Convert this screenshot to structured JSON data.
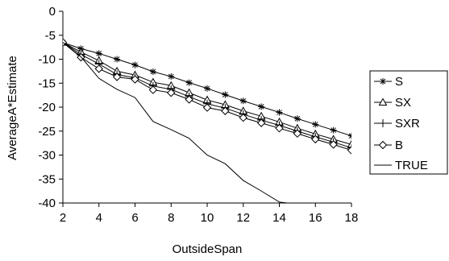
{
  "chart_data": {
    "type": "line",
    "xlabel": "OutsideSpan",
    "ylabel": "AverageA*Estimate",
    "xlim": [
      2,
      18
    ],
    "ylim": [
      -40,
      0
    ],
    "x_ticks": [
      "2",
      "4",
      "6",
      "8",
      "10",
      "12",
      "14",
      "16",
      "18"
    ],
    "y_ticks": [
      "0",
      "-5",
      "-10",
      "-15",
      "-20",
      "-25",
      "-30",
      "-35",
      "-40"
    ],
    "grid": false,
    "legend": "right",
    "series": [
      {
        "name": "S",
        "marker": "asterisk",
        "x": [
          2,
          3,
          4,
          5,
          6,
          7,
          8,
          9,
          10,
          11,
          12,
          13,
          14,
          15,
          16,
          17,
          18
        ],
        "values": [
          -6.5,
          -7.8,
          -8.8,
          -10.0,
          -11.2,
          -12.6,
          -13.6,
          -14.9,
          -16.1,
          -17.4,
          -18.7,
          -19.9,
          -21.1,
          -22.4,
          -23.6,
          -24.8,
          -26.0
        ]
      },
      {
        "name": "SX",
        "marker": "triangle",
        "x": [
          2,
          3,
          4,
          5,
          6,
          7,
          8,
          9,
          10,
          11,
          12,
          13,
          14,
          15,
          16,
          17,
          18
        ],
        "values": [
          -6.5,
          -8.5,
          -10.3,
          -12.5,
          -13.3,
          -14.8,
          -15.5,
          -17.0,
          -18.5,
          -19.5,
          -20.8,
          -21.9,
          -23.1,
          -24.4,
          -25.6,
          -26.7,
          -27.8
        ]
      },
      {
        "name": "SXR",
        "marker": "plus",
        "x": [
          2,
          3,
          4,
          5,
          6,
          7,
          8,
          9,
          10,
          11,
          12,
          13,
          14,
          15,
          16,
          17,
          18
        ],
        "values": [
          -6.5,
          -9.0,
          -11.0,
          -13.2,
          -13.9,
          -15.6,
          -16.3,
          -17.8,
          -19.3,
          -20.2,
          -21.5,
          -22.7,
          -23.8,
          -25.0,
          -26.2,
          -27.3,
          -28.5
        ]
      },
      {
        "name": "B",
        "marker": "diamond",
        "x": [
          2,
          3,
          4,
          5,
          6,
          7,
          8,
          9,
          10,
          11,
          12,
          13,
          14,
          15,
          16,
          17,
          18
        ],
        "values": [
          -6.5,
          -9.6,
          -12.0,
          -13.7,
          -14.2,
          -16.4,
          -17.0,
          -18.4,
          -20.1,
          -20.8,
          -22.2,
          -23.3,
          -24.4,
          -25.5,
          -26.7,
          -27.8,
          -29.0
        ]
      },
      {
        "name": "TRUE",
        "marker": "none",
        "x": [
          2,
          3,
          4,
          5,
          6,
          7,
          8,
          9,
          10,
          11,
          12,
          13,
          14,
          14.45
        ],
        "values": [
          -6.5,
          -9.5,
          -14.0,
          -16.3,
          -18.0,
          -23.0,
          -24.7,
          -26.5,
          -30.0,
          -31.8,
          -35.3,
          -37.5,
          -39.8,
          -40.0
        ]
      }
    ]
  }
}
